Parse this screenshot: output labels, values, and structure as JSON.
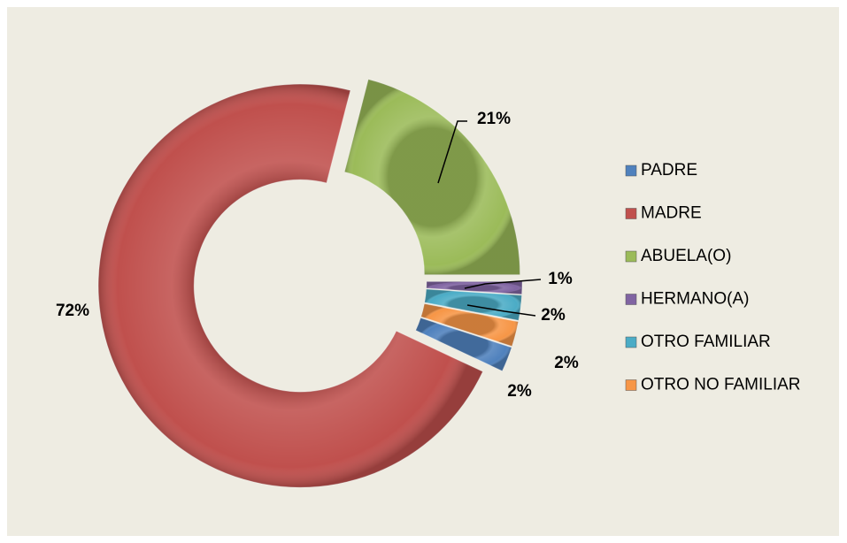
{
  "chart_data": {
    "type": "donut",
    "categories": [
      "PADRE",
      "MADRE",
      "ABUELA(O)",
      "HERMANO(A)",
      "OTRO FAMILIAR",
      "OTRO NO FAMILIAR"
    ],
    "values": [
      2,
      72,
      21,
      1,
      2,
      2
    ],
    "value_labels": [
      "2%",
      "72%",
      "21%",
      "1%",
      "2%",
      "2%"
    ],
    "colors": [
      "#4f81bd",
      "#c0504d",
      "#9bbb59",
      "#8064a2",
      "#4bacc6",
      "#f79646"
    ],
    "legend": "right"
  }
}
